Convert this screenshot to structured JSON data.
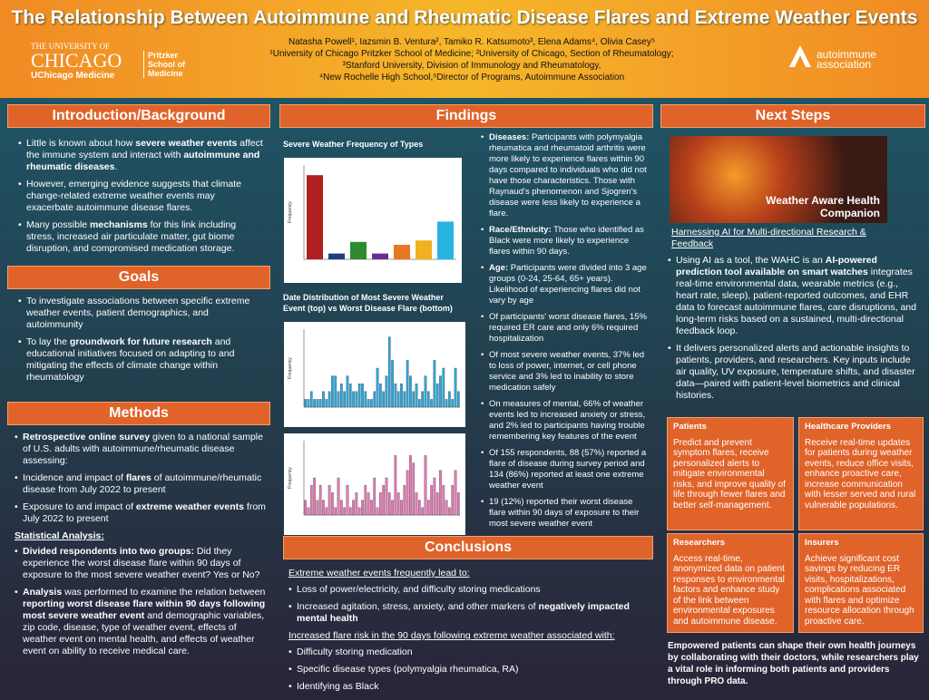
{
  "header": {
    "title": "The Relationship Between Autoimmune and Rheumatic Disease Flares and Extreme Weather Events",
    "authors": "Natasha Powell¹, Iazsmin B. Ventura², Tamiko R. Katsumoto³, Elena Adams⁴, Olivia Casey⁵",
    "affiliations": [
      "¹University of Chicago Pritzker School of Medicine; ²University of Chicago, Section of Rheumatology;",
      "³Stanford University, Division of Immunology and Rheumatology,",
      "⁴New Rochelle High School,⁵Director of Programs, Autoimmune Association"
    ],
    "logo_left": {
      "line1": "THE UNIVERSITY OF",
      "line2": "CHICAGO",
      "line3": "UChicago Medicine",
      "school": "Pritzker School of Medicine"
    },
    "logo_right": {
      "line1": "autoimmune",
      "line2": "association"
    }
  },
  "intro": {
    "heading": "Introduction/Background",
    "bullets": [
      [
        "Little is known about how ",
        "severe weather events",
        " affect the immune system and interact with ",
        "autoimmune and rheumatic diseases",
        "."
      ],
      [
        "However, emerging evidence suggests that climate change-related extreme weather events may exacerbate autoimmune disease flares."
      ],
      [
        "Many possible ",
        "mechanisms",
        " for this link including stress, increased air particulate matter, gut biome disruption, and compromised medication storage."
      ]
    ]
  },
  "goals": {
    "heading": "Goals",
    "bullets": [
      [
        "To investigate associations between specific extreme weather events, patient demographics, and autoimmunity"
      ],
      [
        "To lay the ",
        "groundwork for future research",
        " and educational initiatives focused on adapting to and mitigating the effects of climate change within rheumatology"
      ]
    ]
  },
  "methods": {
    "heading": "Methods",
    "bullets": [
      [
        "",
        "Retrospective online survey",
        " given to a national sample of U.S. adults with autoimmune/rheumatic disease assessing:"
      ],
      [
        "Incidence and impact of ",
        "flares",
        " of autoimmune/rheumatic disease from July 2022 to present"
      ],
      [
        "Exposure to and impact of ",
        "extreme weather events",
        " from July 2022 to present"
      ]
    ],
    "subheading": "Statistical Analysis:",
    "bullets2": [
      [
        "",
        "Divided respondents into two groups:",
        " Did they experience the worst disease flare within 90 days of exposure to the most severe weather event? Yes or No?"
      ],
      [
        "",
        "Analysis",
        " was performed to examine the relation between ",
        "reporting worst disease flare within 90 days following most severe weather event",
        " and demographic variables, zip code, disease, type of weather event, effects of weather event on mental health, and effects of weather event on ability to receive medical care."
      ]
    ]
  },
  "findings": {
    "heading": "Findings",
    "bullets": [
      [
        "",
        "Diseases:",
        " Participants with polymyalgia rheumatica and rheumatoid arthritis were more likely to experience flares within 90 days compared to individuals who did not have those characteristics. Those with Raynaud's phenomenon and Sjogren's disease were less likely to experience a flare."
      ],
      [
        "",
        "Race/Ethnicity:",
        " Those who identified as Black were more likely to experience flares within 90 days."
      ],
      [
        "",
        "Age:",
        " Participants were divided into 3 age groups (0-24, 25-64, 65+ years). Likelihood of experiencing flares did not vary by age"
      ],
      [
        "Of participants' worst disease flares, 15% required ER care and only 6% required hospitalization"
      ],
      [
        "Of most severe weather events, 37% led to loss of power, internet, or cell phone service and 3% led to inability to store medication safely"
      ],
      [
        "On measures of mental, 66% of weather events led to increased anxiety or stress, and 2% led to participants having trouble remembering key features of the event"
      ],
      [
        "Of 155 respondents, 88 (57%) reported a flare of disease during survey period and 134 (86%) reported at least one extreme weather event"
      ],
      [
        "19 (12%) reported their worst disease flare within 90 days of exposure to their most severe weather event"
      ]
    ]
  },
  "conclusions": {
    "heading": "Conclusions",
    "sub1": "Extreme weather events frequently lead to:",
    "bullets": [
      [
        "Loss of power/electricity, and difficulty storing medications"
      ],
      [
        "Increased agitation, stress, anxiety, and other markers of ",
        "negatively impacted mental health"
      ]
    ],
    "sub2": "Increased flare risk in the 90 days following extreme weather associated with:",
    "bullets2": [
      [
        "Difficulty storing medication"
      ],
      [
        "Specific disease types (polymyalgia rheumatica, RA)"
      ],
      [
        "Identifying as Black"
      ]
    ]
  },
  "next_steps": {
    "heading": "Next Steps",
    "image_caption": "Weather Aware Health Companion",
    "link": "Harnessing AI for Multi-directional Research & Feedback",
    "bullets": [
      [
        "Using AI as a tool, the WAHC is an ",
        "AI-powered prediction tool available on smart watches",
        " integrates real-time environmental data, wearable metrics (e.g., heart rate, sleep), patient-reported outcomes, and EHR data to forecast autoimmune flares, care disruptions, and long-term risks based on a sustained, multi-directional feedback loop."
      ],
      [
        "It delivers personalized alerts and actionable insights to patients, providers, and researchers. Key inputs include air quality, UV exposure, temperature shifts, and disaster data—paired with patient-level biometrics and clinical histories."
      ]
    ],
    "boxes": [
      {
        "title": "Patients",
        "text": "Predict and prevent symptom flares, receive personalized alerts to mitigate environmental risks, and improve quality of life through fewer flares and better self-management."
      },
      {
        "title": "Healthcare Providers",
        "text": "Receive real-time updates for patients during weather events, reduce office visits, enhance proactive care, increase communication with lesser served and rural vulnerable populations."
      },
      {
        "title": "Researchers",
        "text": "Access real-time, anonymized data on patient responses to environmental factors and enhance study of the link between environmental exposures and autoimmune disease."
      },
      {
        "title": "Insurers",
        "text": "Achieve significant cost savings by reducing ER visits, hospitalizations, complications associated with flares and optimize resource allocation through proactive care."
      }
    ],
    "footer": "Empowered patients can shape their own health journeys by collaborating with their doctors, while researchers play a vital role in informing both patients and providers through PRO data."
  },
  "chart_data": [
    {
      "type": "bar",
      "title": "Severe Weather Frequency of Types",
      "y_label": "Frequency",
      "ylim": [
        0,
        65
      ],
      "values": [
        58,
        4,
        12,
        4,
        10,
        13,
        26
      ],
      "colors": [
        "#b01e1e",
        "#1f3c88",
        "#2e8b2e",
        "#6a2c91",
        "#e87722",
        "#f2b01e",
        "#28b4e0"
      ]
    },
    {
      "type": "bar",
      "title": "Date Distribution of Most Severe Weather Event (top) vs Worst Disease Flare (bottom)",
      "y_label": "Frequency",
      "ylim": [
        0,
        10
      ],
      "color": "#29a8e0",
      "values": [
        1,
        1,
        2,
        1,
        1,
        1,
        2,
        1,
        2,
        4,
        4,
        2,
        3,
        2,
        4,
        3,
        2,
        2,
        3,
        3,
        2,
        1,
        1,
        2,
        5,
        3,
        2,
        4,
        9,
        6,
        3,
        2,
        3,
        2,
        6,
        4,
        2,
        3,
        1,
        2,
        4,
        2,
        1,
        6,
        3,
        4,
        5,
        1,
        2,
        1,
        5,
        2
      ]
    },
    {
      "type": "bar",
      "y_label": "Frequency",
      "ylim": [
        0,
        10
      ],
      "color": "#e879b6",
      "values": [
        2,
        1,
        4,
        5,
        2,
        4,
        2,
        1,
        4,
        3,
        1,
        5,
        2,
        1,
        4,
        1,
        2,
        3,
        1,
        2,
        4,
        3,
        2,
        5,
        1,
        3,
        4,
        5,
        3,
        2,
        8,
        3,
        2,
        4,
        6,
        8,
        7,
        3,
        2,
        1,
        8,
        2,
        4,
        5,
        3,
        6,
        4,
        2,
        1,
        4,
        6,
        3
      ]
    }
  ]
}
